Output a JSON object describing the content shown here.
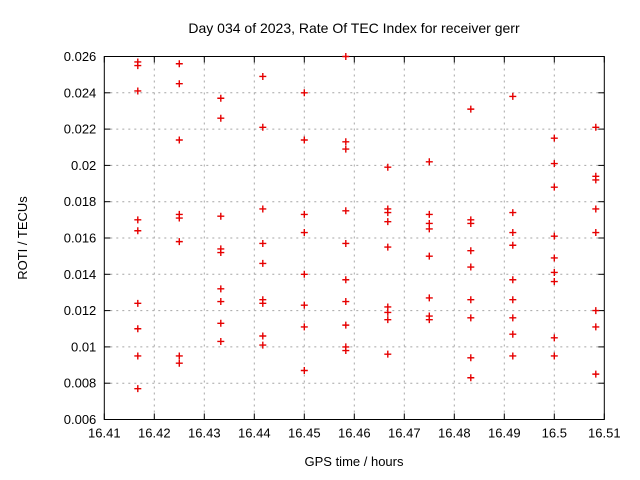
{
  "window": {
    "background": "#ffffff"
  },
  "palette": {
    "marker_color": "#e60000",
    "grid_color": "#a6a6a6",
    "axis_color": "#000000",
    "text_color": "#000000"
  },
  "chart_data": {
    "type": "scatter",
    "title": "Day 034 of 2023, Rate Of TEC Index for receiver gerr",
    "xlabel": "GPS time / hours",
    "ylabel": "ROTI / TECUs",
    "xlim": [
      16.41,
      16.51
    ],
    "ylim": [
      0.006,
      0.026
    ],
    "grid": true,
    "legend": "none",
    "marker": {
      "shape": "plus",
      "size": 7,
      "color": "#e60000"
    },
    "x_ticks": [
      "16.41",
      "16.42",
      "16.43",
      "16.44",
      "16.45",
      "16.46",
      "16.47",
      "16.48",
      "16.49",
      "16.5",
      "16.51"
    ],
    "x_tick_values": [
      16.41,
      16.42,
      16.43,
      16.44,
      16.45,
      16.46,
      16.47,
      16.48,
      16.49,
      16.5,
      16.51
    ],
    "y_ticks": [
      "0.006",
      "0.008",
      "0.01",
      "0.012",
      "0.014",
      "0.016",
      "0.018",
      "0.02",
      "0.022",
      "0.024",
      "0.026"
    ],
    "y_tick_values": [
      0.006,
      0.008,
      0.01,
      0.012,
      0.014,
      0.016,
      0.018,
      0.02,
      0.022,
      0.024,
      0.026
    ],
    "series": [
      {
        "name": "ROTI",
        "points": [
          [
            16.4167,
            0.0257
          ],
          [
            16.4167,
            0.0255
          ],
          [
            16.4167,
            0.0241
          ],
          [
            16.4167,
            0.017
          ],
          [
            16.4167,
            0.0164
          ],
          [
            16.4167,
            0.0124
          ],
          [
            16.4167,
            0.011
          ],
          [
            16.4167,
            0.0095
          ],
          [
            16.4167,
            0.0077
          ],
          [
            16.425,
            0.0256
          ],
          [
            16.425,
            0.0245
          ],
          [
            16.425,
            0.0214
          ],
          [
            16.425,
            0.0173
          ],
          [
            16.425,
            0.0171
          ],
          [
            16.425,
            0.0158
          ],
          [
            16.425,
            0.0095
          ],
          [
            16.425,
            0.0091
          ],
          [
            16.4333,
            0.0237
          ],
          [
            16.4333,
            0.0226
          ],
          [
            16.4333,
            0.0172
          ],
          [
            16.4333,
            0.0154
          ],
          [
            16.4333,
            0.0152
          ],
          [
            16.4333,
            0.0132
          ],
          [
            16.4333,
            0.0125
          ],
          [
            16.4333,
            0.0113
          ],
          [
            16.4333,
            0.0103
          ],
          [
            16.4417,
            0.0249
          ],
          [
            16.4417,
            0.0221
          ],
          [
            16.4417,
            0.0176
          ],
          [
            16.4417,
            0.0157
          ],
          [
            16.4417,
            0.0146
          ],
          [
            16.4417,
            0.0126
          ],
          [
            16.4417,
            0.0124
          ],
          [
            16.4417,
            0.0106
          ],
          [
            16.4417,
            0.0101
          ],
          [
            16.45,
            0.024
          ],
          [
            16.45,
            0.0214
          ],
          [
            16.45,
            0.0173
          ],
          [
            16.45,
            0.0163
          ],
          [
            16.45,
            0.014
          ],
          [
            16.45,
            0.0123
          ],
          [
            16.45,
            0.0111
          ],
          [
            16.45,
            0.0087
          ],
          [
            16.4583,
            0.026
          ],
          [
            16.4583,
            0.0213
          ],
          [
            16.4583,
            0.0209
          ],
          [
            16.4583,
            0.0175
          ],
          [
            16.4583,
            0.0157
          ],
          [
            16.4583,
            0.0137
          ],
          [
            16.4583,
            0.0125
          ],
          [
            16.4583,
            0.0112
          ],
          [
            16.4583,
            0.01
          ],
          [
            16.4583,
            0.0098
          ],
          [
            16.4667,
            0.0199
          ],
          [
            16.4667,
            0.0176
          ],
          [
            16.4667,
            0.0174
          ],
          [
            16.4667,
            0.0169
          ],
          [
            16.4667,
            0.0155
          ],
          [
            16.4667,
            0.0122
          ],
          [
            16.4667,
            0.0119
          ],
          [
            16.4667,
            0.0115
          ],
          [
            16.4667,
            0.0096
          ],
          [
            16.475,
            0.0202
          ],
          [
            16.475,
            0.0173
          ],
          [
            16.475,
            0.0168
          ],
          [
            16.475,
            0.0165
          ],
          [
            16.475,
            0.015
          ],
          [
            16.475,
            0.0127
          ],
          [
            16.475,
            0.0117
          ],
          [
            16.475,
            0.0115
          ],
          [
            16.4833,
            0.0231
          ],
          [
            16.4833,
            0.017
          ],
          [
            16.4833,
            0.0168
          ],
          [
            16.4833,
            0.0153
          ],
          [
            16.4833,
            0.0144
          ],
          [
            16.4833,
            0.0126
          ],
          [
            16.4833,
            0.0116
          ],
          [
            16.4833,
            0.0094
          ],
          [
            16.4833,
            0.0083
          ],
          [
            16.4917,
            0.0238
          ],
          [
            16.4917,
            0.0174
          ],
          [
            16.4917,
            0.0163
          ],
          [
            16.4917,
            0.0156
          ],
          [
            16.4917,
            0.0137
          ],
          [
            16.4917,
            0.0126
          ],
          [
            16.4917,
            0.0116
          ],
          [
            16.4917,
            0.0107
          ],
          [
            16.4917,
            0.0095
          ],
          [
            16.5,
            0.0215
          ],
          [
            16.5,
            0.0201
          ],
          [
            16.5,
            0.0188
          ],
          [
            16.5,
            0.0161
          ],
          [
            16.5,
            0.0149
          ],
          [
            16.5,
            0.0141
          ],
          [
            16.5,
            0.0136
          ],
          [
            16.5,
            0.0105
          ],
          [
            16.5,
            0.0095
          ],
          [
            16.5083,
            0.0221
          ],
          [
            16.5083,
            0.0194
          ],
          [
            16.5083,
            0.0192
          ],
          [
            16.5083,
            0.0176
          ],
          [
            16.5083,
            0.0163
          ],
          [
            16.5083,
            0.012
          ],
          [
            16.5083,
            0.0111
          ],
          [
            16.5083,
            0.0085
          ]
        ]
      }
    ]
  }
}
